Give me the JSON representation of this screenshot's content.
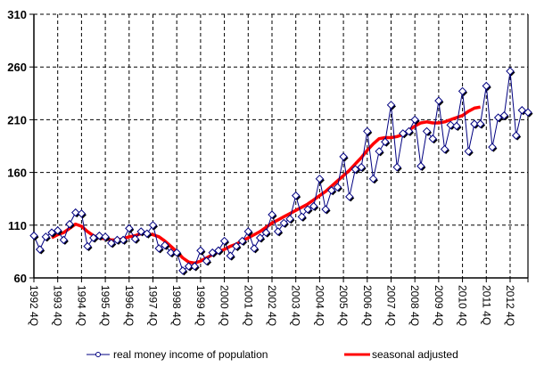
{
  "chart_data": {
    "type": "line",
    "title": "",
    "xlabel": "",
    "ylabel": "",
    "ylim": [
      60,
      310
    ],
    "yticks": [
      "60",
      "110",
      "160",
      "210",
      "260",
      "310"
    ],
    "ytick_values": [
      60,
      110,
      160,
      210,
      260,
      310
    ],
    "xtick_labels": [
      "1992 4Q",
      "1993 4Q",
      "1994 4Q",
      "1995 4Q",
      "1996 4Q",
      "1997 4Q",
      "1998 4Q",
      "1999 4Q",
      "2000 4Q",
      "2001 4Q",
      "2002 4Q",
      "2003 4Q",
      "2004 4Q",
      "2005 4Q",
      "2006 4Q",
      "2007 4Q",
      "2008 4Q",
      "2009 4Q",
      "2010 4Q",
      "2011 4Q",
      "2012 4Q"
    ],
    "x_start": "1992 4Q",
    "x_unit": "quarter",
    "grid": true,
    "legend_position": "bottom",
    "series": [
      {
        "name": "real money income of population",
        "color": "#000080",
        "marker": "diamond",
        "values": [
          100,
          87,
          99,
          103,
          105,
          96,
          111,
          122,
          121,
          90,
          98,
          100,
          99,
          93,
          96,
          96,
          107,
          97,
          104,
          102,
          110,
          88,
          91,
          84,
          84,
          67,
          71,
          71,
          86,
          76,
          84,
          86,
          95,
          81,
          90,
          95,
          104,
          88,
          98,
          103,
          120,
          104,
          112,
          116,
          138,
          118,
          125,
          128,
          154,
          125,
          143,
          146,
          175,
          137,
          163,
          165,
          199,
          154,
          180,
          189,
          224,
          165,
          197,
          199,
          210,
          166,
          199,
          192,
          228,
          182,
          205,
          204,
          237,
          180,
          206,
          206,
          242,
          184,
          212,
          214,
          256,
          195,
          219,
          217
        ]
      },
      {
        "name": "seasonal adjusted",
        "color": "#ff0000",
        "marker": "none",
        "start_index": 3,
        "values": [
          98,
          101,
          103,
          107,
          111,
          109,
          104,
          100,
          98,
          97,
          96,
          96,
          97,
          99,
          100,
          102,
          102,
          101,
          99,
          95,
          90,
          85,
          79,
          75,
          74,
          76,
          79,
          82,
          85,
          87,
          90,
          92,
          95,
          98,
          101,
          104,
          108,
          112,
          115,
          118,
          121,
          124,
          127,
          130,
          134,
          138,
          142,
          147,
          152,
          157,
          162,
          168,
          174,
          181,
          187,
          192,
          193,
          193,
          194,
          196,
          200,
          204,
          207,
          208,
          207,
          207,
          208,
          210,
          212,
          214,
          218,
          221,
          222
        ]
      }
    ]
  },
  "legend": {
    "items": [
      {
        "label": "real money income of population"
      },
      {
        "label": "seasonal adjusted"
      }
    ]
  }
}
